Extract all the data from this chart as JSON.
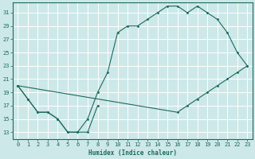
{
  "xlabel": "Humidex (Indice chaleur)",
  "background_color": "#cde8e8",
  "line_color": "#1a6b5a",
  "grid_color": "#ffffff",
  "xlim": [
    -0.5,
    23.5
  ],
  "ylim": [
    12,
    32.5
  ],
  "yticks": [
    13,
    15,
    17,
    19,
    21,
    23,
    25,
    27,
    29,
    31
  ],
  "xticks": [
    0,
    1,
    2,
    3,
    4,
    5,
    6,
    7,
    8,
    9,
    10,
    11,
    12,
    13,
    14,
    15,
    16,
    17,
    18,
    19,
    20,
    21,
    22,
    23
  ],
  "line1_x": [
    0,
    1,
    2,
    3,
    4,
    5,
    6,
    7,
    8
  ],
  "line1_y": [
    20,
    18,
    16,
    16,
    15,
    13,
    13,
    13,
    17
  ],
  "line2_x": [
    0,
    1,
    2,
    3,
    4,
    5,
    6,
    7,
    8,
    9,
    10,
    11,
    12,
    13,
    14,
    15,
    16,
    17,
    18,
    19,
    20,
    21,
    22,
    23
  ],
  "line2_y": [
    20,
    18,
    16,
    16,
    15,
    13,
    13,
    15,
    19,
    22,
    28,
    29,
    29,
    30,
    31,
    32,
    32,
    31,
    32,
    31,
    30,
    28,
    25,
    23
  ],
  "line3_x": [
    0,
    16,
    17,
    18,
    19,
    20,
    21,
    22,
    23
  ],
  "line3_y": [
    20,
    16,
    17,
    18,
    19,
    20,
    21,
    22,
    23
  ]
}
